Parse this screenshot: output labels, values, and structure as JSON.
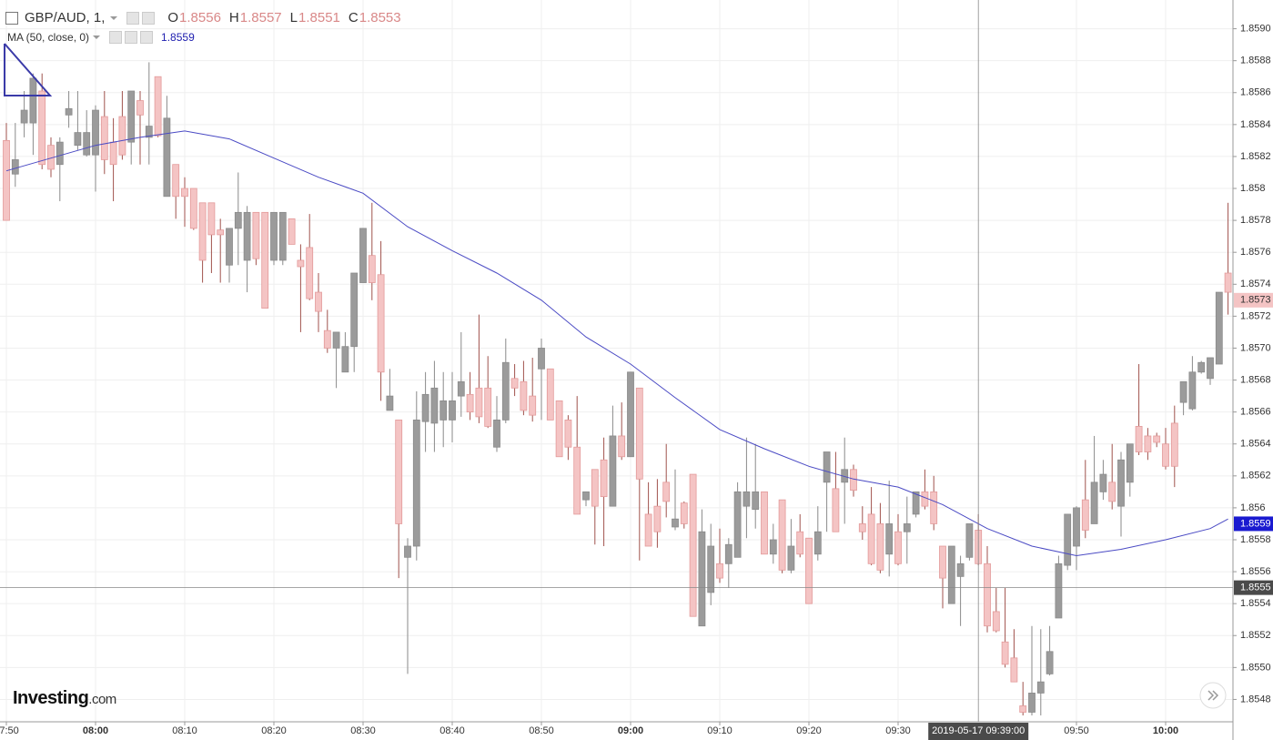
{
  "chart_data": {
    "type": "candlestick",
    "symbol": "GBP/AUD, 1,",
    "ohlc_header": [
      {
        "label": "O",
        "value": 1.8556
      },
      {
        "label": "H",
        "value": 1.8557
      },
      {
        "label": "L",
        "value": 1.8551
      },
      {
        "label": "C",
        "value": 1.8553
      }
    ],
    "x": [
      "07:50",
      "07:51",
      "07:52",
      "07:53",
      "07:54",
      "07:55",
      "07:56",
      "07:57",
      "07:58",
      "07:59",
      "08:00",
      "08:01",
      "08:02",
      "08:03",
      "08:04",
      "08:05",
      "08:06",
      "08:07",
      "08:08",
      "08:09",
      "08:10",
      "08:11",
      "08:12",
      "08:13",
      "08:14",
      "08:15",
      "08:16",
      "08:17",
      "08:18",
      "08:19",
      "08:20",
      "08:21",
      "08:22",
      "08:23",
      "08:24",
      "08:25",
      "08:26",
      "08:27",
      "08:28",
      "08:29",
      "08:30",
      "08:31",
      "08:32",
      "08:33",
      "08:34",
      "08:35",
      "08:36",
      "08:37",
      "08:38",
      "08:39",
      "08:40",
      "08:41",
      "08:42",
      "08:43",
      "08:44",
      "08:45",
      "08:46",
      "08:47",
      "08:48",
      "08:49",
      "08:50",
      "08:51",
      "08:52",
      "08:53",
      "08:54",
      "08:55",
      "08:56",
      "08:57",
      "08:58",
      "08:59",
      "09:00",
      "09:01",
      "09:02",
      "09:03",
      "09:04",
      "09:05",
      "09:06",
      "09:07",
      "09:08",
      "09:09",
      "09:10",
      "09:11",
      "09:12",
      "09:13",
      "09:14",
      "09:15",
      "09:16",
      "09:17",
      "09:18",
      "09:19",
      "09:20",
      "09:21",
      "09:22",
      "09:23",
      "09:24",
      "09:25",
      "09:26",
      "09:27",
      "09:28",
      "09:29",
      "09:30",
      "09:31",
      "09:32",
      "09:33",
      "09:34",
      "09:35",
      "09:36",
      "09:37",
      "09:38",
      "09:39",
      "09:40",
      "09:41",
      "09:42",
      "09:43",
      "09:44",
      "09:45",
      "09:46",
      "09:47",
      "09:48",
      "09:49",
      "09:50",
      "09:51",
      "09:52",
      "09:53",
      "09:54",
      "09:55",
      "09:56",
      "09:57",
      "09:58",
      "09:59",
      "10:00",
      "10:01",
      "10:02",
      "10:03",
      "10:04",
      "10:05",
      "10:06",
      "10:07"
    ],
    "open": [
      1.8583,
      1.85809,
      1.85841,
      1.85841,
      1.85861,
      1.85827,
      1.85815,
      1.85846,
      1.85827,
      1.85821,
      1.85821,
      1.85845,
      1.85829,
      1.85845,
      1.85829,
      1.85855,
      1.85832,
      1.8587,
      1.85795,
      1.85815,
      1.858,
      1.858,
      1.85791,
      1.85791,
      1.85774,
      1.85752,
      1.85775,
      1.85755,
      1.85785,
      1.85785,
      1.85755,
      1.85755,
      1.85781,
      1.85755,
      1.85763,
      1.85735,
      1.85711,
      1.857,
      1.85685,
      1.85701,
      1.85741,
      1.85758,
      1.85746,
      1.85661,
      1.85655,
      1.85569,
      1.85576,
      1.85654,
      1.85653,
      1.85655,
      1.85655,
      1.8567,
      1.85671,
      1.85675,
      1.85675,
      1.85638,
      1.85655,
      1.85681,
      1.85679,
      1.8567,
      1.85687,
      1.85687,
      1.85667,
      1.85655,
      1.85638,
      1.85605,
      1.85624,
      1.8563,
      1.85601,
      1.85645,
      1.85632,
      1.85675,
      1.85596,
      1.85601,
      1.85616,
      1.85588,
      1.85603,
      1.85621,
      1.85526,
      1.85547,
      1.85565,
      1.85565,
      1.85569,
      1.85601,
      1.85599,
      1.8561,
      1.85571,
      1.85605,
      1.85561,
      1.85585,
      1.85581,
      1.85571,
      1.85616,
      1.85612,
      1.85616,
      1.85624,
      1.8559,
      1.85596,
      1.8559,
      1.85571,
      1.85585,
      1.85585,
      1.85596,
      1.8561,
      1.8561,
      1.85576,
      1.8554,
      1.85557,
      1.85569,
      1.85586,
      1.85565,
      1.85535,
      1.85516,
      1.85506,
      1.85476,
      1.85472,
      1.85484,
      1.85496,
      1.85531,
      1.85564,
      1.85576,
      1.85605,
      1.8559,
      1.8561,
      1.85616,
      1.85601,
      1.85616,
      1.85651,
      1.85645,
      1.85645,
      1.8564,
      1.85653,
      1.85666,
      1.85662,
      1.85685,
      1.85681,
      1.8569,
      1.85747
    ],
    "high": [
      1.85841,
      1.85841,
      1.85861,
      1.85872,
      1.85872,
      1.85832,
      1.85832,
      1.85861,
      1.85861,
      1.85849,
      1.85852,
      1.85861,
      1.85844,
      1.85861,
      1.85861,
      1.85861,
      1.85879,
      1.8587,
      1.85858,
      1.85815,
      1.85807,
      1.858,
      1.85791,
      1.85791,
      1.85781,
      1.85775,
      1.8581,
      1.85789,
      1.85785,
      1.85785,
      1.85785,
      1.85785,
      1.85781,
      1.85765,
      1.85784,
      1.85747,
      1.85724,
      1.8571,
      1.8571,
      1.85747,
      1.85775,
      1.85791,
      1.85767,
      1.85687,
      1.85655,
      1.85581,
      1.85673,
      1.85685,
      1.85692,
      1.85685,
      1.85685,
      1.8571,
      1.85685,
      1.85721,
      1.85695,
      1.8567,
      1.85706,
      1.8569,
      1.85692,
      1.85694,
      1.85706,
      1.85687,
      1.85667,
      1.85658,
      1.8567,
      1.8561,
      1.85624,
      1.85644,
      1.85664,
      1.85666,
      1.85685,
      1.85675,
      1.85616,
      1.85618,
      1.8564,
      1.85624,
      1.85604,
      1.85621,
      1.85599,
      1.8559,
      1.85587,
      1.85581,
      1.85616,
      1.85644,
      1.8564,
      1.8561,
      1.8559,
      1.85605,
      1.85593,
      1.85596,
      1.85581,
      1.85601,
      1.85635,
      1.85635,
      1.85644,
      1.85627,
      1.85601,
      1.85613,
      1.85603,
      1.85617,
      1.85596,
      1.85607,
      1.8561,
      1.85624,
      1.8562,
      1.85576,
      1.85576,
      1.8557,
      1.8559,
      1.85596,
      1.85576,
      1.8555,
      1.8555,
      1.85524,
      1.85491,
      1.85526,
      1.85524,
      1.85526,
      1.8557,
      1.85596,
      1.85601,
      1.8563,
      1.85645,
      1.8563,
      1.8564,
      1.85635,
      1.8564,
      1.8569,
      1.8565,
      1.85647,
      1.8565,
      1.85664,
      1.85679,
      1.85695,
      1.85692,
      1.85694,
      1.85735,
      1.85791
    ],
    "low": [
      1.8578,
      1.85801,
      1.85832,
      1.85821,
      1.85812,
      1.85807,
      1.85792,
      1.85838,
      1.85824,
      1.8582,
      1.85798,
      1.85809,
      1.85792,
      1.85818,
      1.85815,
      1.85815,
      1.85815,
      1.85832,
      1.85795,
      1.85781,
      1.85776,
      1.85774,
      1.85741,
      1.85747,
      1.85741,
      1.85741,
      1.85752,
      1.85735,
      1.85752,
      1.85725,
      1.85752,
      1.85752,
      1.85765,
      1.8571,
      1.8573,
      1.8571,
      1.85697,
      1.85675,
      1.85685,
      1.85685,
      1.85741,
      1.8573,
      1.85667,
      1.85661,
      1.85556,
      1.85496,
      1.85567,
      1.85635,
      1.85635,
      1.85638,
      1.85641,
      1.85657,
      1.85655,
      1.85653,
      1.8565,
      1.85635,
      1.85653,
      1.8567,
      1.85658,
      1.85654,
      1.85655,
      1.85655,
      1.85632,
      1.8563,
      1.85596,
      1.85601,
      1.85577,
      1.85576,
      1.85601,
      1.8563,
      1.85632,
      1.85567,
      1.85576,
      1.85575,
      1.85594,
      1.85586,
      1.85587,
      1.85532,
      1.85526,
      1.85539,
      1.85553,
      1.8555,
      1.85569,
      1.85581,
      1.85587,
      1.85571,
      1.85565,
      1.85559,
      1.85559,
      1.85569,
      1.8554,
      1.85567,
      1.85585,
      1.85585,
      1.8559,
      1.85607,
      1.8558,
      1.85564,
      1.85559,
      1.85557,
      1.85564,
      1.85565,
      1.85594,
      1.85599,
      1.85586,
      1.85537,
      1.8554,
      1.85526,
      1.85567,
      1.85564,
      1.85522,
      1.85522,
      1.855,
      1.85491,
      1.8547,
      1.8547,
      1.8547,
      1.85495,
      1.85531,
      1.85561,
      1.85561,
      1.85581,
      1.8559,
      1.85605,
      1.85599,
      1.85582,
      1.85607,
      1.85633,
      1.8563,
      1.85638,
      1.85624,
      1.85613,
      1.85658,
      1.85661,
      1.85684,
      1.85677,
      1.8569,
      1.85721
    ],
    "close": [
      1.8578,
      1.85818,
      1.85849,
      1.85869,
      1.85815,
      1.85812,
      1.85829,
      1.8585,
      1.85835,
      1.85835,
      1.85849,
      1.85818,
      1.85815,
      1.85821,
      1.85861,
      1.85846,
      1.85839,
      1.85833,
      1.85844,
      1.85795,
      1.85795,
      1.85775,
      1.85755,
      1.85771,
      1.85771,
      1.85775,
      1.85785,
      1.85785,
      1.85756,
      1.85725,
      1.85785,
      1.85785,
      1.85765,
      1.85751,
      1.85731,
      1.85723,
      1.857,
      1.8571,
      1.85701,
      1.85747,
      1.85775,
      1.85741,
      1.85685,
      1.8567,
      1.8559,
      1.85576,
      1.85655,
      1.85671,
      1.85675,
      1.85667,
      1.85667,
      1.85679,
      1.8566,
      1.85657,
      1.85651,
      1.85655,
      1.85691,
      1.85675,
      1.85661,
      1.85658,
      1.857,
      1.85655,
      1.85632,
      1.85638,
      1.85596,
      1.8561,
      1.85601,
      1.85607,
      1.85645,
      1.85632,
      1.85685,
      1.85618,
      1.85576,
      1.85585,
      1.85604,
      1.85593,
      1.8559,
      1.85532,
      1.85585,
      1.85576,
      1.85556,
      1.85577,
      1.8561,
      1.8561,
      1.8561,
      1.85571,
      1.8558,
      1.85561,
      1.85576,
      1.85571,
      1.8554,
      1.85585,
      1.85635,
      1.85585,
      1.85624,
      1.85611,
      1.85585,
      1.85565,
      1.85561,
      1.8559,
      1.85565,
      1.8559,
      1.8561,
      1.85601,
      1.8559,
      1.85556,
      1.85576,
      1.85565,
      1.8559,
      1.85565,
      1.85526,
      1.85523,
      1.85502,
      1.85491,
      1.85472,
      1.85484,
      1.85491,
      1.8551,
      1.85565,
      1.85596,
      1.856,
      1.85586,
      1.85616,
      1.85621,
      1.85604,
      1.8563,
      1.8564,
      1.85635,
      1.85635,
      1.85641,
      1.85626,
      1.85626,
      1.85679,
      1.85685,
      1.85691,
      1.85694,
      1.85735,
      1.85735
    ],
    "up_color": "#9b9b9b",
    "down_color": "#f4c4c4",
    "moving_average": {
      "name": "MA (50, close, 0)",
      "value": 1.8559,
      "color": "#4a4ac4",
      "x": [
        "07:50",
        "07:55",
        "08:00",
        "08:05",
        "08:10",
        "08:15",
        "08:20",
        "08:25",
        "08:30",
        "08:35",
        "08:40",
        "08:45",
        "08:50",
        "08:55",
        "09:00",
        "09:05",
        "09:10",
        "09:15",
        "09:20",
        "09:25",
        "09:30",
        "09:35",
        "09:40",
        "09:45",
        "09:50",
        "09:55",
        "10:00",
        "10:05",
        "10:07"
      ],
      "values": [
        1.85811,
        1.85819,
        1.85827,
        1.85832,
        1.85836,
        1.85831,
        1.85819,
        1.85807,
        1.85797,
        1.85776,
        1.85761,
        1.85747,
        1.8573,
        1.85707,
        1.8569,
        1.85669,
        1.85649,
        1.85637,
        1.85626,
        1.85618,
        1.85613,
        1.85602,
        1.85587,
        1.85576,
        1.8557,
        1.85574,
        1.8558,
        1.85587,
        1.85593
      ]
    },
    "last_price": 1.8573,
    "crosshair": {
      "price": 1.8555,
      "time": "2019-05-17 09:39:00",
      "x": "09:39"
    },
    "ylim": [
      1.85466,
      1.85918
    ],
    "yticks": [
      1.8548,
      {
        "value": 1.855,
        "label": "1.8550"
      },
      1.8552,
      1.8554,
      1.8556,
      1.8558,
      1.856,
      1.8562,
      1.8564,
      1.8566,
      1.8568,
      {
        "value": 1.857,
        "label": "1.8570"
      },
      1.8572,
      1.8574,
      1.8576,
      1.8578,
      1.858,
      1.8582,
      1.8584,
      1.8586,
      1.8588,
      {
        "value": 1.859,
        "label": "1.8590"
      }
    ],
    "xticks": [
      "07:50",
      "08:00",
      "08:10",
      "08:20",
      "08:30",
      "08:40",
      "08:50",
      "09:00",
      "09:10",
      "09:20",
      "09:30",
      "09:50",
      "10:00"
    ],
    "grid": true,
    "watermark": {
      "brand": "Investing",
      "suffix": ".com"
    }
  }
}
